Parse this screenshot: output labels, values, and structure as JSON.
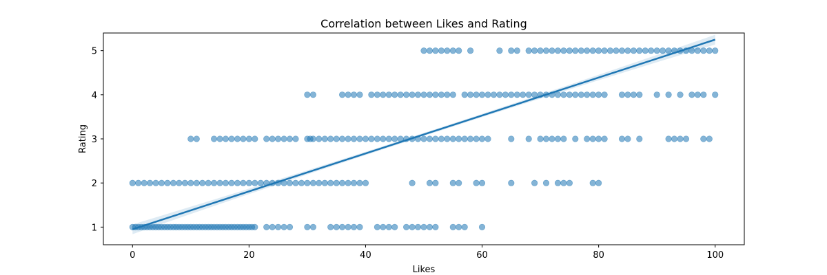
{
  "chart_data": {
    "type": "scatter",
    "title": "Correlation between Likes and Rating",
    "xlabel": "Likes",
    "ylabel": "Rating",
    "xlim": [
      -5,
      105
    ],
    "ylim": [
      0.6,
      5.4
    ],
    "xticks": [
      0,
      20,
      40,
      60,
      80,
      100
    ],
    "yticks": [
      1,
      2,
      3,
      4,
      5
    ],
    "grid": false,
    "colors": {
      "points": "#1f77b4",
      "line": "#1f77b4",
      "band": "#1f77b4"
    },
    "regression_line": {
      "x": [
        0,
        100
      ],
      "y": [
        0.95,
        5.25
      ]
    },
    "series": [
      {
        "rating": 1,
        "likes": [
          0,
          0.5,
          1,
          1.5,
          2,
          2.5,
          3,
          3.5,
          4,
          4.5,
          5,
          5.5,
          6,
          6.5,
          7,
          7.5,
          8,
          8.5,
          9,
          9.5,
          10,
          10.5,
          11,
          11.5,
          12,
          12.5,
          13,
          13.5,
          14,
          14.5,
          15,
          15.5,
          16,
          16.5,
          17,
          17.5,
          18,
          18.5,
          19,
          19.5,
          20,
          20.5,
          21,
          23,
          24,
          25,
          26,
          27,
          30,
          31,
          34,
          35,
          36,
          37,
          38,
          39,
          42,
          43,
          44,
          45,
          47,
          48,
          49,
          50,
          51,
          52,
          55,
          56,
          57,
          60
        ]
      },
      {
        "rating": 2,
        "likes": [
          0,
          1,
          2,
          3,
          4,
          5,
          6,
          7,
          8,
          9,
          10,
          11,
          12,
          13,
          14,
          15,
          16,
          17,
          18,
          19,
          20,
          21,
          22,
          23,
          24,
          25,
          26,
          27,
          28,
          29,
          30,
          31,
          32,
          33,
          34,
          35,
          36,
          37,
          38,
          39,
          40,
          48,
          51,
          52,
          55,
          56,
          59,
          60,
          65,
          69,
          71,
          73,
          74,
          75,
          79,
          80
        ]
      },
      {
        "rating": 3,
        "likes": [
          10,
          11,
          14,
          15,
          16,
          17,
          18,
          19,
          20,
          21,
          23,
          24,
          25,
          26,
          27,
          28,
          30,
          30.5,
          31,
          32,
          33,
          34,
          35,
          36,
          37,
          38,
          39,
          40,
          41,
          42,
          43,
          44,
          45,
          46,
          47,
          48,
          49,
          50,
          51,
          52,
          53,
          54,
          55,
          56,
          57,
          58,
          59,
          60,
          61,
          65,
          68,
          70,
          71,
          72,
          73,
          74,
          76,
          78,
          79,
          80,
          81,
          84,
          85,
          87,
          92,
          93,
          94,
          95,
          98,
          99
        ]
      },
      {
        "rating": 4,
        "likes": [
          30,
          31,
          36,
          37,
          38,
          39,
          41,
          42,
          43,
          44,
          45,
          46,
          47,
          48,
          49,
          50,
          51,
          52,
          53,
          54,
          55,
          57,
          58,
          59,
          60,
          61,
          62,
          63,
          64,
          65,
          66,
          67,
          68,
          69,
          70,
          71,
          72,
          73,
          74,
          75,
          76,
          77,
          78,
          79,
          80,
          81,
          84,
          85,
          86,
          87,
          90,
          92,
          94,
          96,
          97,
          98,
          100
        ]
      },
      {
        "rating": 5,
        "likes": [
          50,
          51,
          52,
          53,
          54,
          55,
          56,
          58,
          63,
          65,
          66,
          68,
          69,
          70,
          71,
          72,
          73,
          74,
          75,
          76,
          77,
          78,
          79,
          80,
          81,
          82,
          83,
          84,
          85,
          86,
          87,
          88,
          89,
          90,
          91,
          92,
          93,
          94,
          95,
          96,
          97,
          98,
          99,
          100
        ]
      }
    ]
  }
}
